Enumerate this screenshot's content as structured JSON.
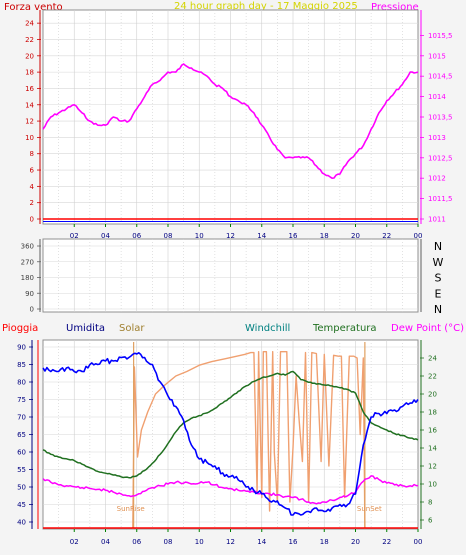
{
  "chart_data": [
    {
      "type": "line",
      "title": "24 hour graph day - 17 Maggio 2025",
      "left_label": "Forza vento",
      "right_label": "Pressione",
      "x_ticks": [
        "02",
        "04",
        "06",
        "08",
        "10",
        "12",
        "14",
        "16",
        "18",
        "20",
        "22",
        "00"
      ],
      "left_ticks": [
        "0",
        "2",
        "4",
        "6",
        "8",
        "10",
        "12",
        "14",
        "16",
        "18",
        "20",
        "22",
        "24"
      ],
      "right_ticks": [
        "1011",
        "1011,5",
        "1012",
        "1012,5",
        "1013",
        "1013,5",
        "1014",
        "1014,5",
        "1015",
        "1015,5"
      ],
      "ylim_left": [
        0,
        25
      ],
      "ylim_right": [
        1011,
        1016
      ],
      "grid": true,
      "colors": {
        "wind": "#ff0000",
        "pressure": "#ff00ff",
        "title": "#d4d400",
        "baseline": "#0000ff"
      },
      "series": [
        {
          "name": "Pressione",
          "axis": "right",
          "x": [
            0,
            0.5,
            1,
            1.5,
            2,
            2.5,
            3,
            3.5,
            4,
            4.5,
            5,
            5.5,
            6,
            6.5,
            7,
            7.5,
            8,
            8.5,
            9,
            9.5,
            10,
            10.5,
            11,
            11.5,
            12,
            12.5,
            13,
            13.5,
            14,
            14.5,
            15,
            15.5,
            16,
            16.5,
            17,
            17.5,
            18,
            18.5,
            19,
            19.5,
            20,
            20.5,
            21,
            21.5,
            22,
            22.5,
            23,
            23.5,
            24
          ],
          "values": [
            1013.2,
            1013.5,
            1013.6,
            1013.7,
            1013.8,
            1013.6,
            1013.4,
            1013.3,
            1013.3,
            1013.5,
            1013.4,
            1013.4,
            1013.7,
            1014.0,
            1014.3,
            1014.4,
            1014.6,
            1014.6,
            1014.8,
            1014.7,
            1014.6,
            1014.5,
            1014.3,
            1014.2,
            1014.0,
            1013.9,
            1013.8,
            1013.6,
            1013.3,
            1013.0,
            1012.7,
            1012.5,
            1012.5,
            1012.5,
            1012.5,
            1012.3,
            1012.1,
            1012.0,
            1012.1,
            1012.4,
            1012.6,
            1012.8,
            1013.2,
            1013.6,
            1013.9,
            1014.1,
            1014.3,
            1014.6,
            1014.6
          ]
        },
        {
          "name": "Forza vento",
          "axis": "left",
          "x": [
            0,
            24
          ],
          "values": [
            0,
            0
          ]
        }
      ]
    },
    {
      "type": "line",
      "ticks": [
        "0",
        "90",
        "180",
        "270",
        "360"
      ],
      "ylim": [
        0,
        360
      ],
      "direction_labels": [
        "N",
        "W",
        "S",
        "E",
        "N"
      ],
      "x_ticks": [
        "02",
        "04",
        "06",
        "08",
        "10",
        "12",
        "14",
        "16",
        "18",
        "20",
        "22",
        "00"
      ],
      "grid": true
    },
    {
      "type": "line",
      "legend": [
        "Pioggia",
        "Umidita",
        "Solar",
        "Windchill",
        "Temperatura",
        "Dew Point (°C)"
      ],
      "left_ticks": [
        "40",
        "45",
        "50",
        "55",
        "60",
        "65",
        "70",
        "75",
        "80",
        "85",
        "90"
      ],
      "right_ticks": [
        "6",
        "8",
        "10",
        "12",
        "14",
        "16",
        "18",
        "20",
        "22",
        "24"
      ],
      "ylim_left": [
        38,
        92
      ],
      "ylim_right": [
        5,
        26
      ],
      "x_ticks": [
        "02",
        "04",
        "06",
        "08",
        "10",
        "12",
        "14",
        "16",
        "18",
        "20",
        "22",
        "00"
      ],
      "annotations": [
        "SunRise",
        "SunSet"
      ],
      "sunrise_hour": 5.8,
      "sunset_hour": 20.6,
      "grid": true,
      "colors": {
        "rain": "#ff0000",
        "humidity": "#0000ff",
        "solar": "#f0a070",
        "windchill": "#008080",
        "temperature": "#207020",
        "dewpoint": "#ff00ff"
      },
      "series": [
        {
          "name": "Umidita",
          "axis": "left",
          "x": [
            0,
            0.5,
            1,
            1.5,
            2,
            2.5,
            3,
            3.5,
            4,
            4.5,
            5,
            5.5,
            6,
            6.5,
            7,
            7.5,
            8,
            8.5,
            9,
            9.5,
            10,
            10.5,
            11,
            11.5,
            12,
            12.5,
            13,
            13.5,
            14,
            14.5,
            15,
            15.5,
            16,
            16.5,
            17,
            17.5,
            18,
            18.5,
            19,
            19.5,
            20,
            20.5,
            21,
            21.5,
            22,
            22.5,
            23,
            23.5,
            24
          ],
          "values": [
            84,
            83,
            83,
            84,
            83,
            83,
            85,
            85,
            86,
            86,
            87,
            87,
            88,
            87,
            85,
            80,
            76,
            73,
            69,
            62,
            58,
            57,
            56,
            54,
            53,
            52,
            50,
            49,
            48,
            46,
            46,
            44,
            42,
            42,
            43,
            44,
            43,
            44,
            45,
            45,
            48,
            62,
            70,
            71,
            71,
            72,
            73,
            74,
            75
          ]
        },
        {
          "name": "Temperatura",
          "axis": "right",
          "x": [
            0,
            0.5,
            1,
            1.5,
            2,
            2.5,
            3,
            3.5,
            4,
            4.5,
            5,
            5.5,
            6,
            6.5,
            7,
            7.5,
            8,
            8.5,
            9,
            9.5,
            10,
            10.5,
            11,
            11.5,
            12,
            12.5,
            13,
            13.5,
            14,
            14.5,
            15,
            15.5,
            16,
            16.5,
            17,
            17.5,
            18,
            18.5,
            19,
            19.5,
            20,
            20.5,
            21,
            21.5,
            22,
            22.5,
            23,
            23.5,
            24
          ],
          "values": [
            13.8,
            13.3,
            13.0,
            12.8,
            12.6,
            12.2,
            11.8,
            11.4,
            11.2,
            11.0,
            10.8,
            10.7,
            10.9,
            11.5,
            12.3,
            13.3,
            14.5,
            15.8,
            16.8,
            17.3,
            17.6,
            17.9,
            18.4,
            19.0,
            19.6,
            20.3,
            20.9,
            21.4,
            21.8,
            22.0,
            22.3,
            22.1,
            22.5,
            21.6,
            21.3,
            21.1,
            21.0,
            20.9,
            20.7,
            20.5,
            20.1,
            18.0,
            16.8,
            16.4,
            16.0,
            15.6,
            15.4,
            15.1,
            14.9
          ]
        },
        {
          "name": "Dew Point",
          "axis": "right",
          "x": [
            0,
            0.5,
            1,
            1.5,
            2,
            2.5,
            3,
            3.5,
            4,
            4.5,
            5,
            5.5,
            6,
            6.5,
            7,
            7.5,
            8,
            8.5,
            9,
            9.5,
            10,
            10.5,
            11,
            11.5,
            12,
            12.5,
            13,
            13.5,
            14,
            14.5,
            15,
            15.5,
            16,
            16.5,
            17,
            17.5,
            18,
            18.5,
            19,
            19.5,
            20,
            20.5,
            21,
            21.5,
            22,
            22.5,
            23,
            23.5,
            24
          ],
          "values": [
            10.6,
            10.2,
            9.9,
            9.8,
            9.7,
            9.6,
            9.5,
            9.4,
            9.3,
            9.1,
            8.9,
            8.7,
            8.8,
            9.2,
            9.6,
            9.8,
            10.0,
            10.2,
            10.1,
            10.0,
            10.1,
            10.2,
            9.9,
            9.6,
            9.5,
            9.3,
            9.2,
            9.1,
            9.0,
            8.9,
            8.8,
            8.6,
            8.5,
            8.3,
            8.0,
            7.8,
            8.0,
            8.2,
            8.5,
            8.7,
            9.1,
            10.3,
            10.9,
            10.5,
            10.1,
            9.9,
            9.8,
            9.8,
            9.8
          ]
        },
        {
          "name": "Solar",
          "axis": "right",
          "x": [
            5.75,
            5.85,
            6.05,
            6.3,
            6.7,
            7.2,
            7.8,
            8.5,
            9.2,
            10.0,
            10.8,
            11.6,
            12.4,
            12.9,
            13.3,
            13.5,
            13.7,
            13.8,
            14.0,
            14.1,
            14.3,
            14.5,
            14.7,
            14.8,
            15.0,
            15.2,
            15.4,
            15.6,
            15.8,
            16.0,
            16.2,
            16.4,
            16.6,
            16.8,
            17.0,
            17.2,
            17.5,
            17.8,
            18.0,
            18.3,
            18.6,
            18.9,
            19.1,
            19.3,
            19.6,
            19.9,
            20.1,
            20.3,
            20.5,
            20.6
          ],
          "values": [
            5,
            23,
            13,
            16,
            18,
            20,
            21,
            22,
            22.5,
            23.2,
            23.6,
            23.9,
            24.2,
            24.4,
            24.6,
            24.6,
            9,
            24.7,
            8.5,
            24.7,
            24.7,
            7,
            24.7,
            13.5,
            8,
            24.7,
            24.7,
            24.7,
            8,
            14,
            22,
            17,
            12.5,
            24.6,
            8,
            24.6,
            24.5,
            12.5,
            24.4,
            12,
            24.3,
            24.2,
            24.2,
            8.5,
            24.2,
            24.2,
            24.0,
            15.5,
            24.0,
            5
          ]
        },
        {
          "name": "Pioggia",
          "axis": "left",
          "x": [
            0,
            24
          ],
          "values": [
            38,
            38
          ]
        }
      ]
    }
  ],
  "texts": {
    "c1_title": "24 hour graph day - 17 Maggio 2025",
    "c1_left": "Forza vento",
    "c1_right": "Pressione",
    "c3_pioggia": "Pioggia",
    "c3_umidita": "Umidita",
    "c3_solar": "Solar",
    "c3_windchill": "Windchill",
    "c3_temperatura": "Temperatura",
    "c3_dewpoint": "Dew Point (°C)",
    "sunrise": "SunRise",
    "sunset": "SunSet"
  }
}
